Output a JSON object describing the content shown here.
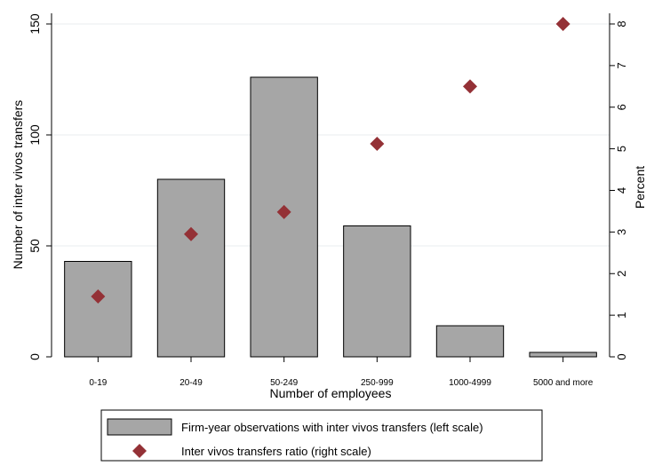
{
  "chart_data": {
    "type": "bar",
    "categories": [
      "0-19",
      "20-49",
      "50-249",
      "250-999",
      "1000-4999",
      "5000 and more"
    ],
    "series": [
      {
        "name": "Firm-year observations with inter vivos transfers (left scale)",
        "type": "bar",
        "axis": "left",
        "color": "#a6a6a6",
        "values": [
          43,
          80,
          126,
          59,
          14,
          2
        ]
      },
      {
        "name": "Inter vivos transfers ratio (right scale)",
        "type": "scatter",
        "axis": "right",
        "color": "#943136",
        "marker": "diamond",
        "values": [
          1.45,
          2.95,
          3.48,
          5.12,
          6.5,
          8.0
        ]
      }
    ],
    "xlabel": "Number of employees",
    "ylabel_left": "Number of inter vivos transfers",
    "ylabel_right": "Percent",
    "ylim_left": [
      0,
      150
    ],
    "ylim_right": [
      0,
      8
    ],
    "yticks_left": [
      "0",
      "50",
      "100",
      "150"
    ],
    "yticks_right": [
      "0",
      "1",
      "2",
      "3",
      "4",
      "5",
      "6",
      "7",
      "8"
    ],
    "grid": true,
    "legend_position": "bottom"
  }
}
